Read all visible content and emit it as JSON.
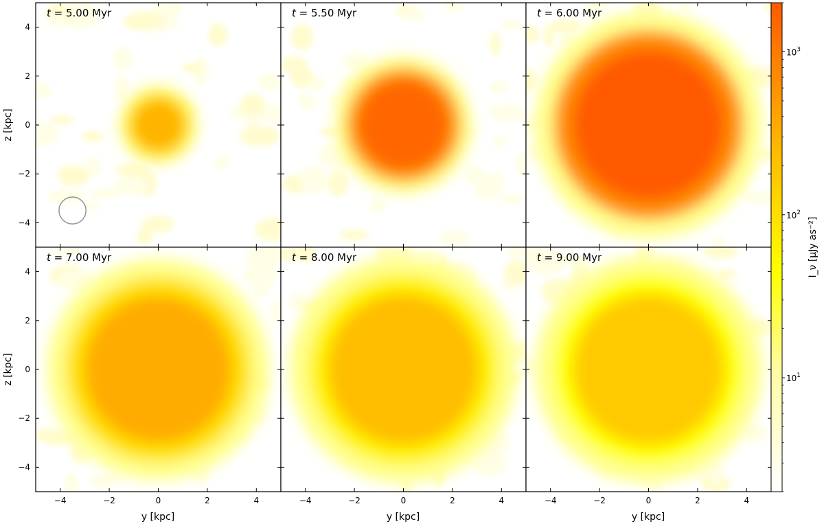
{
  "figure": {
    "colorbar_label": "I_ν [μJy as⁻²]",
    "colorbar_ticks": [
      {
        "value": 1000,
        "base": "10",
        "exp": "3"
      },
      {
        "value": 100,
        "base": "10",
        "exp": "2"
      },
      {
        "value": 10,
        "base": "10",
        "exp": "1"
      }
    ]
  },
  "chart_data": {
    "type": "heatmap",
    "layout": "2x3 grid, shared axes",
    "xlabel": "y [kpc]",
    "ylabel": "z [kpc]",
    "xlim": [
      -5,
      5
    ],
    "ylim": [
      -5,
      5
    ],
    "xticks": [
      -4,
      -2,
      0,
      2,
      4
    ],
    "yticks": [
      -4,
      -2,
      0,
      2,
      4
    ],
    "tick_labels": [
      "−4",
      "−2",
      "0",
      "2",
      "4"
    ],
    "colorbar": {
      "scale": "log",
      "range": [
        2,
        2000
      ],
      "colormap": "white-yellow-orange",
      "colors": [
        "#ffffff",
        "#ffff00",
        "#ff5a00"
      ]
    },
    "panels": [
      {
        "time_label": "5.00",
        "t_myr": 5.0,
        "blobs": [
          {
            "cx": 0,
            "cz": 0,
            "r": 1.5,
            "peak": 250
          }
        ],
        "beam": {
          "cx": -3.5,
          "cz": -3.5,
          "r": 0.55
        }
      },
      {
        "time_label": "5.50",
        "t_myr": 5.5,
        "blobs": [
          {
            "cx": 0,
            "cz": 0,
            "r": 2.6,
            "peak": 1500
          }
        ]
      },
      {
        "time_label": "6.00",
        "t_myr": 6.0,
        "blobs": [
          {
            "cx": 0,
            "cz": 0,
            "r": 4.3,
            "peak": 2000
          }
        ]
      },
      {
        "time_label": "7.00",
        "t_myr": 7.0,
        "blobs": [
          {
            "cx": 0,
            "cz": 0,
            "r": 4.2,
            "peak": 300
          }
        ]
      },
      {
        "time_label": "8.00",
        "t_myr": 8.0,
        "blobs": [
          {
            "cx": 0,
            "cz": 0,
            "r": 4.3,
            "peak": 200
          }
        ]
      },
      {
        "time_label": "9.00",
        "t_myr": 9.0,
        "blobs": [
          {
            "cx": 0,
            "cz": 0,
            "r": 4.3,
            "peak": 150
          }
        ]
      }
    ],
    "unit_label": "Myr"
  }
}
